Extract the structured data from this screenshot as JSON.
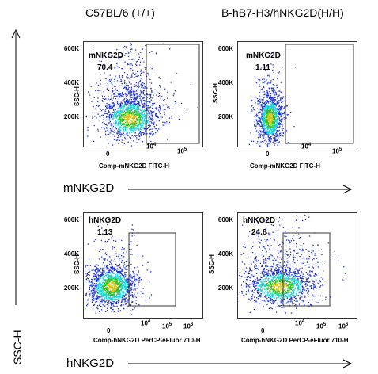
{
  "column_titles": [
    "C57BL/6 (+/+)",
    "B-hB7-H3/hNKG2D(H/H)"
  ],
  "row_labels": [
    "mNKG2D",
    "hNKG2D"
  ],
  "y_axis_global_label": "SSC-H",
  "colors": {
    "low": "#1a2fd6",
    "mid": "#19d3d3",
    "high": "#30c020",
    "peak": "#d8c418",
    "gate": "#333333"
  },
  "chart_data": [
    {
      "type": "scatter",
      "panel": "top-left",
      "xlabel": "Comp-mNKG2D FITC-H",
      "ylabel": "SSC-H",
      "y_ticks": [
        "600K",
        "400K",
        "200K"
      ],
      "x_ticks": [
        "0",
        "10^4",
        "10^5"
      ],
      "gate_label": "mNKG2D",
      "gate_value": "70.4",
      "population": {
        "center_x_log": 3.3,
        "center_y_K": 195,
        "spread": "wide"
      }
    },
    {
      "type": "scatter",
      "panel": "top-right",
      "xlabel": "Comp-mNKG2D FITC-H",
      "ylabel": "SSC-H",
      "y_ticks": [
        "600K",
        "400K",
        "200K"
      ],
      "x_ticks": [
        "0",
        "10^4",
        "10^5"
      ],
      "gate_label": "mNKG2D",
      "gate_value": "1.11",
      "population": {
        "center_x_log": 0.5,
        "center_y_K": 195,
        "spread": "narrow"
      }
    },
    {
      "type": "scatter",
      "panel": "bottom-left",
      "xlabel": "Comp-hNKG2D PerCP-eFluor 710-H",
      "ylabel": "SSC-H",
      "y_ticks": [
        "600K",
        "400K",
        "200K"
      ],
      "x_ticks": [
        "0",
        "10^4",
        "10^5",
        "10^6"
      ],
      "gate_label": "hNKG2D",
      "gate_value": "1.13",
      "population": {
        "center_x_log": 0.4,
        "center_y_K": 205,
        "spread": "medium"
      }
    },
    {
      "type": "scatter",
      "panel": "bottom-right",
      "xlabel": "Comp-hNKG2D PerCP-eFluor 710-H",
      "ylabel": "SSC-H",
      "y_ticks": [
        "600K",
        "400K",
        "200K"
      ],
      "x_ticks": [
        "0",
        "10^4",
        "10^5",
        "10^6"
      ],
      "gate_label": "hNKG2D",
      "gate_value": "24.8",
      "population": {
        "center_x_log": 2.2,
        "center_y_K": 205,
        "spread": "wide"
      }
    }
  ]
}
